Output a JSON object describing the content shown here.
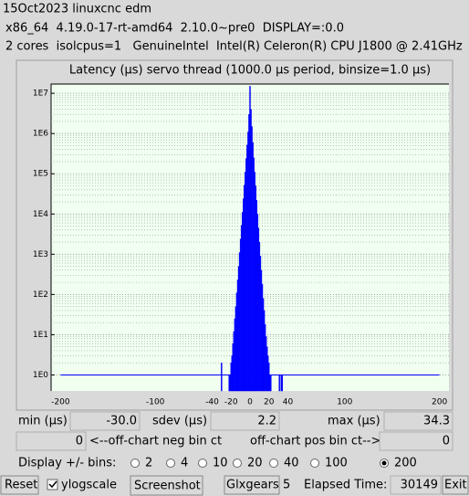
{
  "window": {
    "title": "15Oct2023 linuxcnc edm"
  },
  "system": {
    "line1": "x86_64  4.19.0-17-rt-amd64  2.10.0~pre0  DISPLAY=:0.0",
    "line2": "2 cores  isolcpus=1   GenuineIntel  Intel(R) Celeron(R) CPU J1800 @ 2.41GHz"
  },
  "chart": {
    "type": "bar",
    "title": "Latency (µs) servo thread (1000.0 µs period, binsize=1.0 µs)",
    "color": "#0000ff",
    "log_scale": true,
    "grid": true,
    "x": [
      -30,
      -29,
      -28,
      -27,
      -26,
      -25,
      -24,
      -23,
      -22,
      -21,
      -20,
      -19,
      -18,
      -17,
      -16,
      -15,
      -14,
      -13,
      -12,
      -11,
      -10,
      -9,
      -8,
      -7,
      -6,
      -5,
      -4,
      -3,
      -2,
      -1,
      0,
      1,
      2,
      3,
      4,
      5,
      6,
      7,
      8,
      9,
      10,
      11,
      12,
      13,
      14,
      15,
      16,
      17,
      18,
      19,
      20,
      21,
      22,
      23,
      24,
      25,
      26,
      27,
      28,
      29,
      30,
      31,
      32,
      33,
      34
    ],
    "values": [
      2,
      0,
      0,
      0,
      0,
      0,
      0,
      0,
      1,
      1,
      2,
      3,
      6,
      12,
      25,
      50,
      110,
      230,
      500,
      1100,
      2400,
      5200,
      11000,
      24000,
      52000,
      110000,
      240000,
      520000,
      1100000,
      3000000,
      15000000,
      4000000,
      1500000,
      600000,
      250000,
      110000,
      50000,
      22000,
      10000,
      4500,
      2000,
      900,
      400,
      180,
      80,
      40,
      18,
      9,
      5,
      3,
      2,
      1,
      1,
      0,
      0,
      0,
      0,
      0,
      0,
      0,
      0,
      1,
      0,
      1,
      1
    ],
    "xlim": [
      -210,
      210
    ],
    "xticks": [
      -200,
      -100,
      -40,
      -20,
      0,
      20,
      40,
      100,
      200
    ],
    "ylim": [
      0.4,
      17000000
    ],
    "yticks": [
      {
        "value": 1,
        "label": "1E0"
      },
      {
        "value": 10,
        "label": "1E1"
      },
      {
        "value": 100,
        "label": "1E2"
      },
      {
        "value": 1000,
        "label": "1E3"
      },
      {
        "value": 10000,
        "label": "1E4"
      },
      {
        "value": 100000,
        "label": "1E5"
      },
      {
        "value": 1000000,
        "label": "1E6"
      },
      {
        "value": 10000000,
        "label": "1E7"
      }
    ]
  },
  "stats": {
    "min_label": "min (µs)",
    "min": "-30.0",
    "sdev_label": "sdev (µs)",
    "sdev": "2.2",
    "max_label": "max (µs)",
    "max": "34.3",
    "neg_count": "0",
    "neg_label": "<--off-chart neg bin ct",
    "pos_label": "off-chart pos bin ct-->",
    "pos_count": "0"
  },
  "bins": {
    "label": "Display +/- bins:",
    "options": [
      "2",
      "4",
      "10",
      "20",
      "40",
      "100",
      "200"
    ],
    "selected": 6
  },
  "controls": {
    "reset": "Reset",
    "ylogscale": "ylogscale",
    "ylogscale_checked": true,
    "screenshot": "Screenshot",
    "glxgears": "Glxgears",
    "glxgears_count": "5",
    "elapsed_label": "Elapsed Time:",
    "elapsed": "30149",
    "exit": "Exit"
  }
}
